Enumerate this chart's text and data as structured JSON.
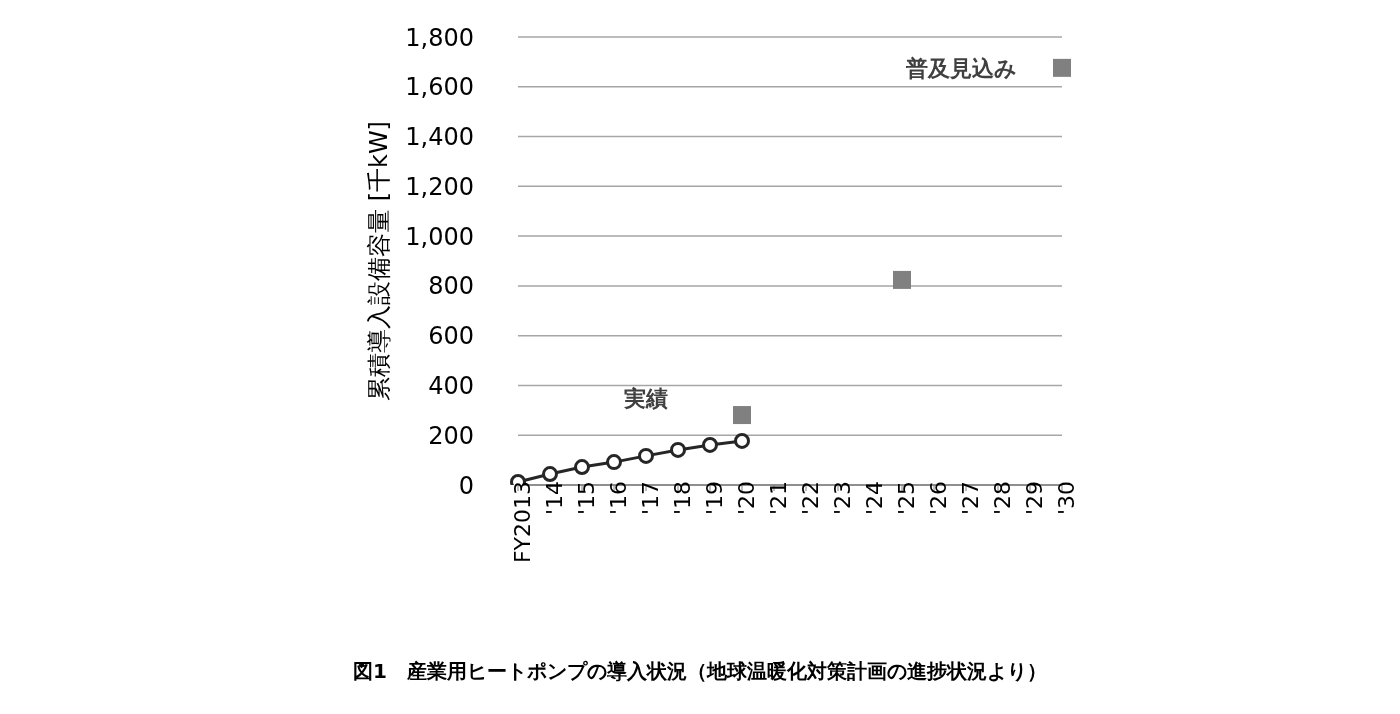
{
  "chart_data": {
    "type": "line",
    "title": "図1　産業用ヒートポンプの導入状況（地球温暖化対策計画の進捗状況より）",
    "ylabel": "累積導入設備容量 [千kW]",
    "categories": [
      "FY2013",
      "'14",
      "'15",
      "'16",
      "'17",
      "'18",
      "'19",
      "'20",
      "'21",
      "'22",
      "'23",
      "'24",
      "'25",
      "'26",
      "'27",
      "'28",
      "'29",
      "'30"
    ],
    "series": [
      {
        "name": "実績",
        "marker": "circle",
        "color": "#262626",
        "values": [
          12,
          44,
          72,
          92,
          117,
          141,
          161,
          177,
          null,
          null,
          null,
          null,
          null,
          null,
          null,
          null,
          null,
          null
        ]
      },
      {
        "name": "普及見込み",
        "type": "scatter",
        "marker": "square",
        "color": "#808080",
        "values": [
          null,
          null,
          null,
          null,
          null,
          null,
          null,
          281,
          null,
          null,
          null,
          null,
          824,
          null,
          null,
          null,
          null,
          1676
        ]
      }
    ],
    "ylim": [
      0,
      1800
    ],
    "yticks": [
      0,
      200,
      400,
      600,
      800,
      {
        "value": 1000,
        "label": "1,000"
      },
      {
        "value": 1200,
        "label": "1,200"
      },
      {
        "value": 1400,
        "label": "1,400"
      },
      {
        "value": 1600,
        "label": "1,600"
      },
      {
        "value": 1800,
        "label": "1,800"
      }
    ],
    "grid": "y",
    "legend": false
  }
}
